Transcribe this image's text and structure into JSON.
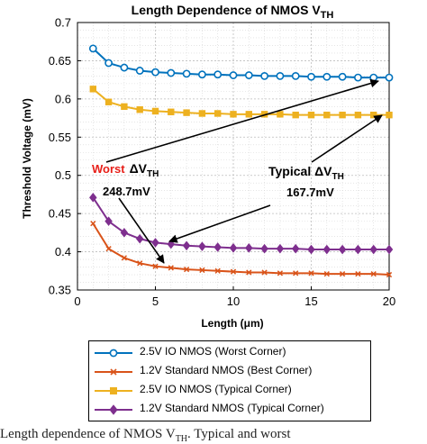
{
  "chart_data": {
    "type": "line",
    "title": "Length Dependence of NMOS V",
    "title_sub": "TH",
    "xlabel": "Length (μm)",
    "ylabel": "Threshold Voltage (mV)",
    "xlim": [
      0,
      20
    ],
    "ylim": [
      0.35,
      0.7
    ],
    "xticks": [
      "0",
      "5",
      "10",
      "15",
      "20"
    ],
    "yticks": [
      "0.35",
      "0.4",
      "0.45",
      "0.5",
      "0.55",
      "0.6",
      "0.65",
      "0.7"
    ],
    "grid": true,
    "x": [
      1,
      2,
      3,
      4,
      5,
      6,
      7,
      8,
      9,
      10,
      11,
      12,
      13,
      14,
      15,
      16,
      17,
      18,
      19,
      20
    ],
    "series": [
      {
        "name": "2.5V IO NMOS (Worst Corner)",
        "color": "#0072BD",
        "marker": "circle",
        "values": [
          0.666,
          0.647,
          0.641,
          0.637,
          0.635,
          0.634,
          0.633,
          0.632,
          0.632,
          0.631,
          0.631,
          0.63,
          0.63,
          0.63,
          0.629,
          0.629,
          0.629,
          0.628,
          0.628,
          0.628
        ]
      },
      {
        "name": "1.2V Standard NMOS (Best Corner)",
        "color": "#D95319",
        "marker": "x",
        "values": [
          0.437,
          0.404,
          0.392,
          0.385,
          0.381,
          0.379,
          0.377,
          0.376,
          0.375,
          0.374,
          0.373,
          0.373,
          0.372,
          0.372,
          0.372,
          0.371,
          0.371,
          0.371,
          0.371,
          0.37
        ]
      },
      {
        "name": "2.5V IO NMOS (Typical Corner)",
        "color": "#EDB120",
        "marker": "square",
        "values": [
          0.613,
          0.596,
          0.59,
          0.586,
          0.584,
          0.583,
          0.582,
          0.581,
          0.581,
          0.58,
          0.58,
          0.58,
          0.58,
          0.579,
          0.579,
          0.579,
          0.579,
          0.579,
          0.579,
          0.579
        ]
      },
      {
        "name": "1.2V Standard NMOS (Typical Corner)",
        "color": "#7E2F8E",
        "marker": "diamond",
        "values": [
          0.471,
          0.44,
          0.425,
          0.417,
          0.412,
          0.41,
          0.408,
          0.407,
          0.406,
          0.405,
          0.405,
          0.404,
          0.404,
          0.404,
          0.403,
          0.403,
          0.403,
          0.403,
          0.403,
          0.403
        ]
      }
    ],
    "annotations": {
      "worst_label": "Worst",
      "worst_delta": "ΔV",
      "worst_sub": "TH",
      "worst_value": "248.7mV",
      "typical_label": "Typical ΔV",
      "typical_sub": "TH",
      "typical_value": "167.7mV"
    },
    "legend_position": "bottom-outside"
  },
  "caption": "Length dependence of NMOS V",
  "caption_sub": "TH",
  "caption_rest": ". Typical and worst"
}
